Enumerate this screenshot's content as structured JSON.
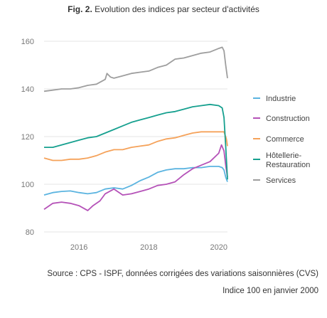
{
  "figure": {
    "label": "Fig. 2.",
    "title": "Evolution des indices par secteur d'activités"
  },
  "footer": {
    "source": "Source : CPS - ISPF, données corrigées des variations saisonnières (CVS)",
    "note": "Indice 100 en janvier 2000"
  },
  "chart_data": {
    "type": "line",
    "title": "Evolution des indices par secteur d'activités",
    "xlabel": "",
    "ylabel": "",
    "xlim": [
      2015.0,
      2020.25
    ],
    "ylim": [
      80,
      160
    ],
    "x_ticks": [
      2016,
      2018,
      2020
    ],
    "y_ticks": [
      80,
      100,
      120,
      140,
      160
    ],
    "grid": "horizontal",
    "legend_position": "right",
    "series": [
      {
        "name": "Industrie",
        "color": "#5bb4e0",
        "points": [
          [
            2015.0,
            95.5
          ],
          [
            2015.25,
            96.5
          ],
          [
            2015.5,
            97.0
          ],
          [
            2015.75,
            97.2
          ],
          [
            2016.0,
            96.5
          ],
          [
            2016.25,
            96.0
          ],
          [
            2016.5,
            96.5
          ],
          [
            2016.75,
            98.0
          ],
          [
            2017.0,
            98.5
          ],
          [
            2017.25,
            98.0
          ],
          [
            2017.5,
            99.5
          ],
          [
            2017.75,
            101.5
          ],
          [
            2018.0,
            103.0
          ],
          [
            2018.25,
            105.0
          ],
          [
            2018.5,
            106.0
          ],
          [
            2018.75,
            106.5
          ],
          [
            2019.0,
            106.5
          ],
          [
            2019.25,
            107.0
          ],
          [
            2019.5,
            107.0
          ],
          [
            2019.75,
            107.5
          ],
          [
            2020.0,
            107.5
          ],
          [
            2020.1,
            107.0
          ],
          [
            2020.15,
            106.0
          ],
          [
            2020.2,
            103.0
          ],
          [
            2020.25,
            101.0
          ]
        ]
      },
      {
        "name": "Construction",
        "color": "#b552b8",
        "points": [
          [
            2015.0,
            89.5
          ],
          [
            2015.25,
            92.0
          ],
          [
            2015.5,
            92.5
          ],
          [
            2015.75,
            92.0
          ],
          [
            2016.0,
            91.0
          ],
          [
            2016.25,
            89.0
          ],
          [
            2016.4,
            91.0
          ],
          [
            2016.6,
            93.0
          ],
          [
            2016.75,
            96.0
          ],
          [
            2017.0,
            98.0
          ],
          [
            2017.25,
            95.5
          ],
          [
            2017.5,
            96.0
          ],
          [
            2017.75,
            97.0
          ],
          [
            2018.0,
            98.0
          ],
          [
            2018.25,
            99.5
          ],
          [
            2018.5,
            100.0
          ],
          [
            2018.75,
            101.0
          ],
          [
            2019.0,
            104.0
          ],
          [
            2019.25,
            106.5
          ],
          [
            2019.5,
            108.0
          ],
          [
            2019.75,
            109.5
          ],
          [
            2020.0,
            113.0
          ],
          [
            2020.08,
            116.5
          ],
          [
            2020.15,
            114.0
          ],
          [
            2020.2,
            108.0
          ],
          [
            2020.25,
            103.0
          ]
        ]
      },
      {
        "name": "Commerce",
        "color": "#f5a25a",
        "points": [
          [
            2015.0,
            111.0
          ],
          [
            2015.25,
            110.0
          ],
          [
            2015.5,
            110.0
          ],
          [
            2015.75,
            110.5
          ],
          [
            2016.0,
            110.5
          ],
          [
            2016.25,
            111.0
          ],
          [
            2016.5,
            112.0
          ],
          [
            2016.75,
            113.5
          ],
          [
            2017.0,
            114.5
          ],
          [
            2017.25,
            114.5
          ],
          [
            2017.5,
            115.5
          ],
          [
            2017.75,
            116.0
          ],
          [
            2018.0,
            116.5
          ],
          [
            2018.25,
            118.0
          ],
          [
            2018.5,
            119.0
          ],
          [
            2018.75,
            119.5
          ],
          [
            2019.0,
            120.5
          ],
          [
            2019.25,
            121.5
          ],
          [
            2019.5,
            122.0
          ],
          [
            2019.75,
            122.0
          ],
          [
            2020.0,
            122.0
          ],
          [
            2020.15,
            122.0
          ],
          [
            2020.22,
            119.0
          ],
          [
            2020.25,
            116.0
          ]
        ]
      },
      {
        "name": "Hôtellerie-Restauration",
        "color": "#16a08f",
        "points": [
          [
            2015.0,
            115.5
          ],
          [
            2015.25,
            115.5
          ],
          [
            2015.5,
            116.5
          ],
          [
            2015.75,
            117.5
          ],
          [
            2016.0,
            118.5
          ],
          [
            2016.25,
            119.5
          ],
          [
            2016.5,
            120.0
          ],
          [
            2016.75,
            121.5
          ],
          [
            2017.0,
            123.0
          ],
          [
            2017.25,
            124.5
          ],
          [
            2017.5,
            126.0
          ],
          [
            2017.75,
            127.0
          ],
          [
            2018.0,
            128.0
          ],
          [
            2018.25,
            129.0
          ],
          [
            2018.5,
            130.0
          ],
          [
            2018.75,
            130.5
          ],
          [
            2019.0,
            131.5
          ],
          [
            2019.25,
            132.5
          ],
          [
            2019.5,
            133.0
          ],
          [
            2019.75,
            133.5
          ],
          [
            2020.0,
            133.0
          ],
          [
            2020.1,
            132.0
          ],
          [
            2020.15,
            128.0
          ],
          [
            2020.2,
            116.0
          ],
          [
            2020.25,
            102.0
          ]
        ]
      },
      {
        "name": "Services",
        "color": "#9e9e9e",
        "points": [
          [
            2015.0,
            139.0
          ],
          [
            2015.25,
            139.5
          ],
          [
            2015.5,
            140.0
          ],
          [
            2015.75,
            140.0
          ],
          [
            2016.0,
            140.5
          ],
          [
            2016.25,
            141.5
          ],
          [
            2016.5,
            142.0
          ],
          [
            2016.75,
            144.0
          ],
          [
            2016.8,
            146.5
          ],
          [
            2016.9,
            145.0
          ],
          [
            2017.0,
            144.5
          ],
          [
            2017.25,
            145.5
          ],
          [
            2017.5,
            146.5
          ],
          [
            2017.75,
            147.0
          ],
          [
            2018.0,
            147.5
          ],
          [
            2018.25,
            149.0
          ],
          [
            2018.5,
            150.0
          ],
          [
            2018.75,
            152.5
          ],
          [
            2019.0,
            153.0
          ],
          [
            2019.25,
            154.0
          ],
          [
            2019.5,
            155.0
          ],
          [
            2019.75,
            155.5
          ],
          [
            2020.0,
            157.0
          ],
          [
            2020.1,
            157.5
          ],
          [
            2020.15,
            156.0
          ],
          [
            2020.2,
            150.0
          ],
          [
            2020.25,
            144.5
          ]
        ]
      }
    ]
  }
}
